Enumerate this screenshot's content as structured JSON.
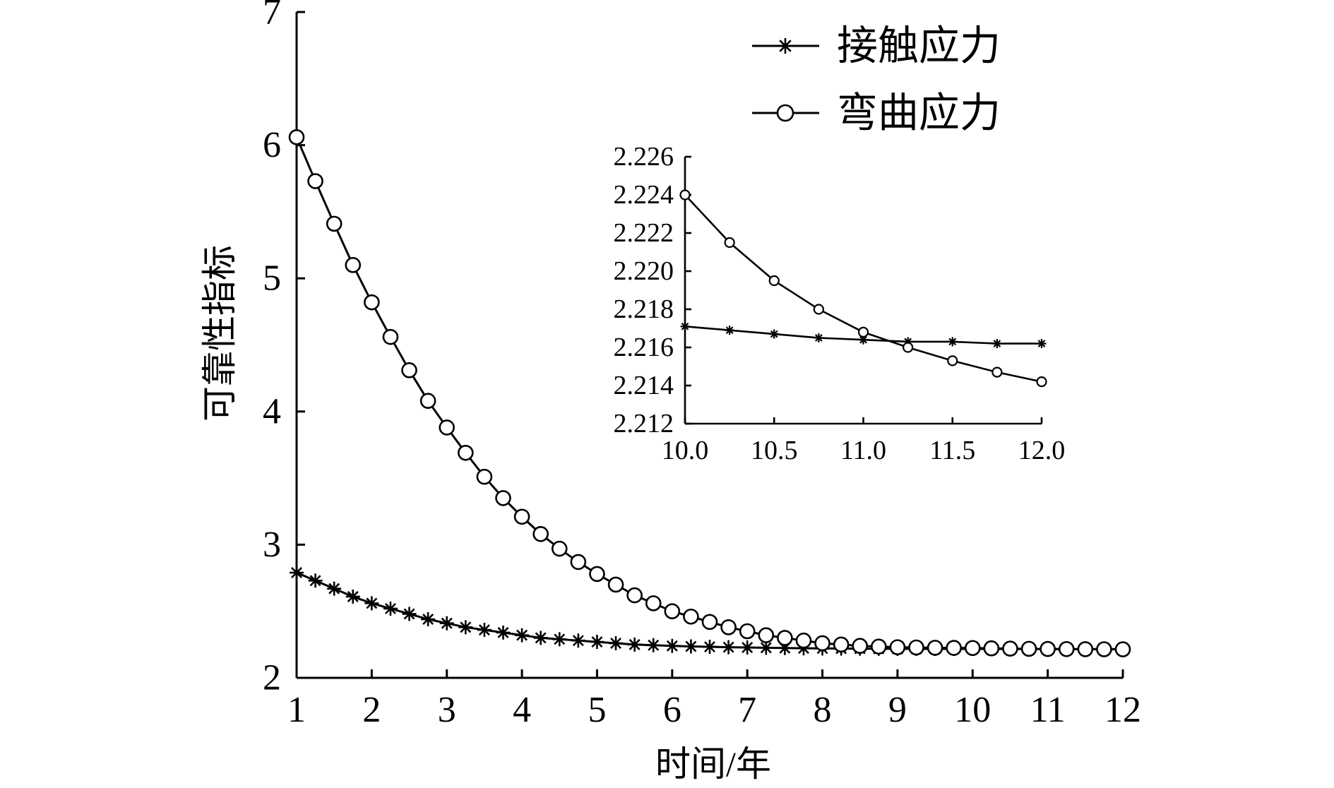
{
  "chart_data": {
    "type": "line",
    "xlabel": "时间/年",
    "ylabel": "可靠性指标",
    "xlim": [
      1,
      12
    ],
    "ylim": [
      2,
      7
    ],
    "x_ticks": [
      "1",
      "2",
      "3",
      "4",
      "5",
      "6",
      "7",
      "8",
      "9",
      "10",
      "11",
      "12"
    ],
    "y_ticks": [
      "2",
      "3",
      "4",
      "5",
      "6",
      "7"
    ],
    "grid": false,
    "legend_position": "top-right",
    "series": [
      {
        "name": "接触应力",
        "marker": "asterisk",
        "color": "#000000",
        "x": [
          1.0,
          1.25,
          1.5,
          1.75,
          2.0,
          2.25,
          2.5,
          2.75,
          3.0,
          3.25,
          3.5,
          3.75,
          4.0,
          4.25,
          4.5,
          4.75,
          5.0,
          5.25,
          5.5,
          5.75,
          6.0,
          6.25,
          6.5,
          6.75,
          7.0,
          7.25,
          7.5,
          7.75,
          8.0,
          8.25,
          8.5,
          8.75,
          9.0,
          9.25,
          9.5,
          9.75,
          10.0,
          10.25,
          10.5,
          10.75,
          11.0,
          11.25,
          11.5,
          11.75,
          12.0
        ],
        "y": [
          2.79,
          2.73,
          2.67,
          2.61,
          2.56,
          2.52,
          2.48,
          2.44,
          2.41,
          2.38,
          2.36,
          2.34,
          2.32,
          2.3,
          2.29,
          2.28,
          2.27,
          2.26,
          2.25,
          2.245,
          2.24,
          2.236,
          2.233,
          2.23,
          2.228,
          2.226,
          2.224,
          2.222,
          2.221,
          2.22,
          2.219,
          2.2185,
          2.218,
          2.2177,
          2.2174,
          2.2172,
          2.2171,
          2.2169,
          2.2167,
          2.2165,
          2.2164,
          2.2163,
          2.2163,
          2.2162,
          2.2162
        ]
      },
      {
        "name": "弯曲应力",
        "marker": "circle",
        "color": "#000000",
        "x": [
          1.0,
          1.25,
          1.5,
          1.75,
          2.0,
          2.25,
          2.5,
          2.75,
          3.0,
          3.25,
          3.5,
          3.75,
          4.0,
          4.25,
          4.5,
          4.75,
          5.0,
          5.25,
          5.5,
          5.75,
          6.0,
          6.25,
          6.5,
          6.75,
          7.0,
          7.25,
          7.5,
          7.75,
          8.0,
          8.25,
          8.5,
          8.75,
          9.0,
          9.25,
          9.5,
          9.75,
          10.0,
          10.25,
          10.5,
          10.75,
          11.0,
          11.25,
          11.5,
          11.75,
          12.0
        ],
        "y": [
          6.06,
          5.73,
          5.41,
          5.1,
          4.82,
          4.56,
          4.31,
          4.08,
          3.88,
          3.69,
          3.51,
          3.35,
          3.21,
          3.08,
          2.97,
          2.87,
          2.78,
          2.7,
          2.62,
          2.56,
          2.5,
          2.46,
          2.42,
          2.38,
          2.35,
          2.32,
          2.3,
          2.28,
          2.26,
          2.25,
          2.24,
          2.235,
          2.23,
          2.228,
          2.226,
          2.225,
          2.224,
          2.2215,
          2.2195,
          2.218,
          2.2168,
          2.216,
          2.2153,
          2.2147,
          2.2142
        ]
      }
    ],
    "inset": {
      "type": "line",
      "xlim": [
        10.0,
        12.0
      ],
      "ylim": [
        2.212,
        2.226
      ],
      "x_ticks": [
        "10.0",
        "10.5",
        "11.0",
        "11.5",
        "12.0"
      ],
      "y_ticks": [
        "2.212",
        "2.214",
        "2.216",
        "2.218",
        "2.220",
        "2.222",
        "2.224",
        "2.226"
      ],
      "series": [
        {
          "name": "接触应力",
          "marker": "asterisk",
          "x": [
            10.0,
            10.25,
            10.5,
            10.75,
            11.0,
            11.25,
            11.5,
            11.75,
            12.0
          ],
          "y": [
            2.2171,
            2.2169,
            2.2167,
            2.2165,
            2.2164,
            2.2163,
            2.2163,
            2.2162,
            2.2162
          ]
        },
        {
          "name": "弯曲应力",
          "marker": "circle",
          "x": [
            10.0,
            10.25,
            10.5,
            10.75,
            11.0,
            11.25,
            11.5,
            11.75,
            12.0
          ],
          "y": [
            2.224,
            2.2215,
            2.2195,
            2.218,
            2.2168,
            2.216,
            2.2153,
            2.2147,
            2.2142
          ]
        }
      ]
    }
  }
}
